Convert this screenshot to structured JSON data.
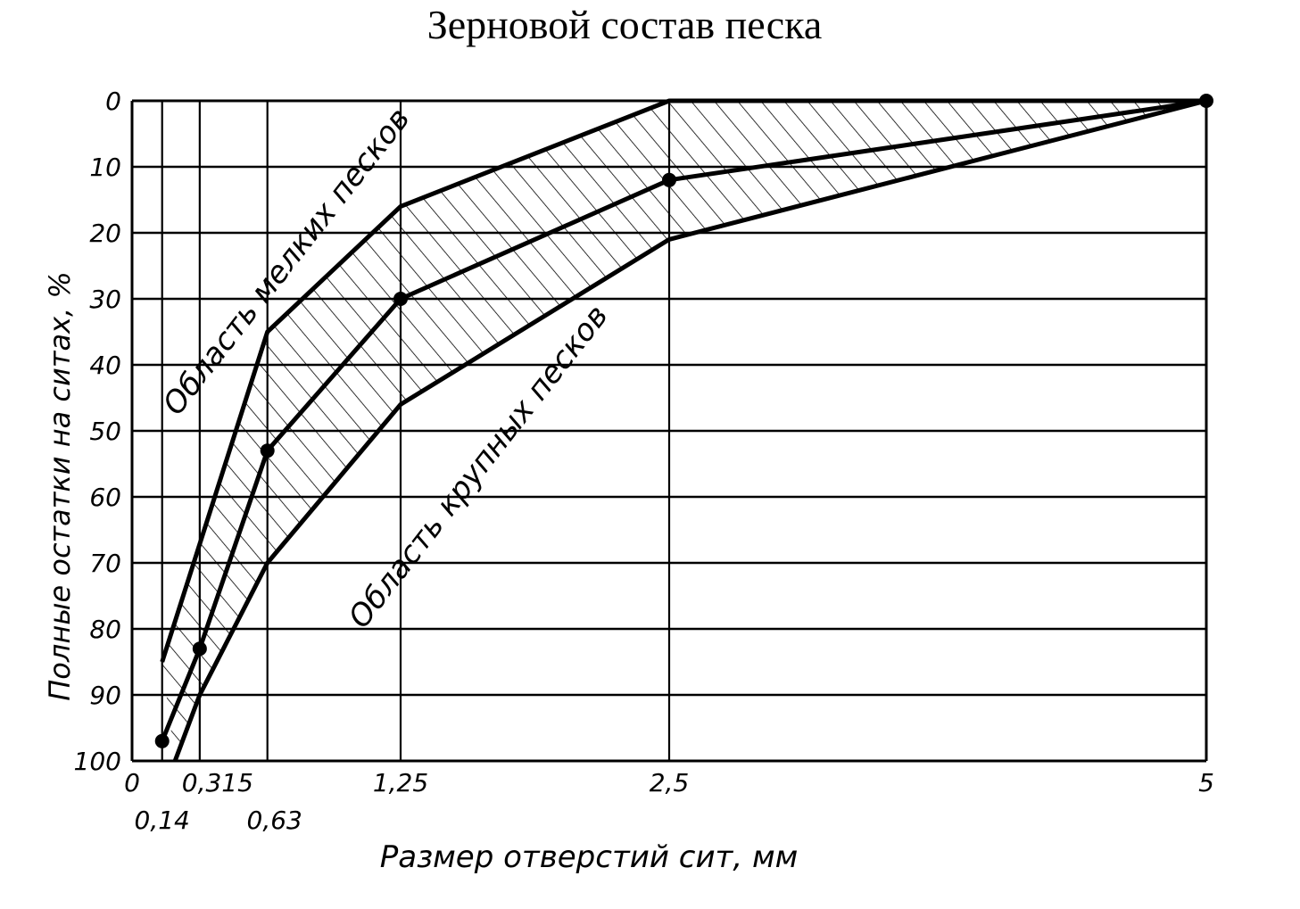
{
  "chart_data": {
    "type": "area",
    "title": "Зерновой состав песка",
    "xlabel": "Размер отверстий сит, мм",
    "ylabel": "Полные остатки на ситах, %",
    "x_sieves": [
      0.14,
      0.315,
      0.63,
      1.25,
      2.5,
      5
    ],
    "x_tick_labels": [
      "0",
      "0,14",
      "0,315",
      "0,63",
      "1,25",
      "2,5",
      "5"
    ],
    "y_ticks": [
      0,
      10,
      20,
      30,
      40,
      50,
      60,
      70,
      80,
      90,
      100
    ],
    "y_tick_labels": [
      "0",
      "10",
      "20",
      "30",
      "40",
      "50",
      "60",
      "70",
      "80",
      "90",
      "100"
    ],
    "xlim": [
      0,
      5
    ],
    "ylim": [
      0,
      100
    ],
    "y_inverted": true,
    "grid": true,
    "series": [
      {
        "x": [
          0.14,
          0.63,
          1.25,
          2.5,
          5
        ],
        "y": [
          85,
          35,
          16,
          0,
          0
        ]
      },
      {
        "x": [
          0.14,
          0.315,
          0.63,
          1.25,
          2.5,
          5
        ],
        "y": [
          97,
          83,
          53,
          30,
          12,
          0
        ]
      },
      {
        "x": [
          0.2,
          0.315,
          0.63,
          1.25,
          2.5,
          5
        ],
        "y": [
          100,
          90,
          70,
          46,
          21,
          0
        ]
      }
    ],
    "region_labels": [
      "Область мелких песков",
      "Область крупных песков"
    ]
  }
}
